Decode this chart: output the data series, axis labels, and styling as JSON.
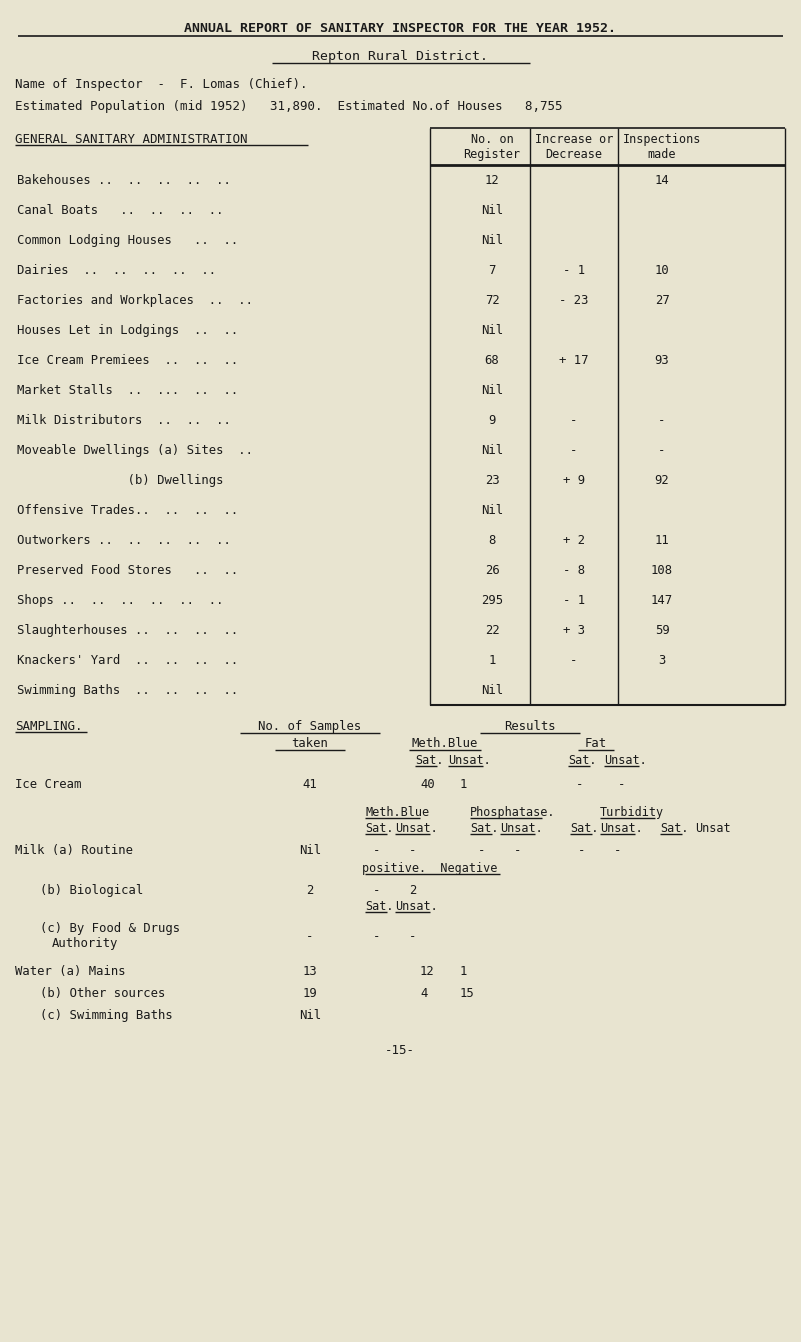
{
  "bg_color": "#e8e4d0",
  "text_color": "#1a1a1a",
  "title_line": "ANNUAL REPORT OF SANITARY INSPECTOR FOR THE YEAR 1952.",
  "subtitle": "Repton Rural District.",
  "inspector_line": "Name of Inspector  -  F. Lomas (Chief).",
  "population_line": "Estimated Population (mid 1952)   31,890.  Estimated No.of Houses   8,755",
  "section_header": "GENERAL SANITARY ADMINISTRATION",
  "table_rows": [
    [
      "Bakehouses ..  ..  ..  ..  ..",
      "12",
      "",
      "14"
    ],
    [
      "Canal Boats   ..  ..  ..  ..",
      "Nil",
      "",
      ""
    ],
    [
      "Common Lodging Houses   ..  ..",
      "Nil",
      "",
      ""
    ],
    [
      "Dairies  ..  ..  ..  ..  ..",
      "7",
      "- 1",
      "10"
    ],
    [
      "Factories and Workplaces  ..  ..",
      "72",
      "- 23",
      "27"
    ],
    [
      "Houses Let in Lodgings  ..  ..",
      "Nil",
      "",
      ""
    ],
    [
      "Ice Cream Premiees  ..  ..  ..",
      "68",
      "+ 17",
      "93"
    ],
    [
      "Market Stalls  ..  ...  ..  ..",
      "Nil",
      "",
      ""
    ],
    [
      "Milk Distributors  ..  ..  ..",
      "9",
      "-",
      "-"
    ],
    [
      "Moveable Dwellings (a) Sites  ..",
      "Nil",
      "-",
      "-"
    ],
    [
      "               (b) Dwellings",
      "23",
      "+ 9",
      "92"
    ],
    [
      "Offensive Trades..  ..  ..  ..",
      "Nil",
      "",
      ""
    ],
    [
      "Outworkers ..  ..  ..  ..  ..",
      "8",
      "+ 2",
      "11"
    ],
    [
      "Preserved Food Stores   ..  ..",
      "26",
      "- 8",
      "108"
    ],
    [
      "Shops ..  ..  ..  ..  ..  ..",
      "295",
      "- 1",
      "147"
    ],
    [
      "Slaughterhouses ..  ..  ..  ..",
      "22",
      "+ 3",
      "59"
    ],
    [
      "Knackers' Yard  ..  ..  ..  ..",
      "1",
      "-",
      "3"
    ],
    [
      "Swimming Baths  ..  ..  ..  ..",
      "Nil",
      "",
      ""
    ]
  ],
  "sampling_header": "SAMPLING.",
  "page_num": "-15-",
  "font_family": "monospace",
  "fig_w": 8.01,
  "fig_h": 13.42,
  "dpi": 100
}
